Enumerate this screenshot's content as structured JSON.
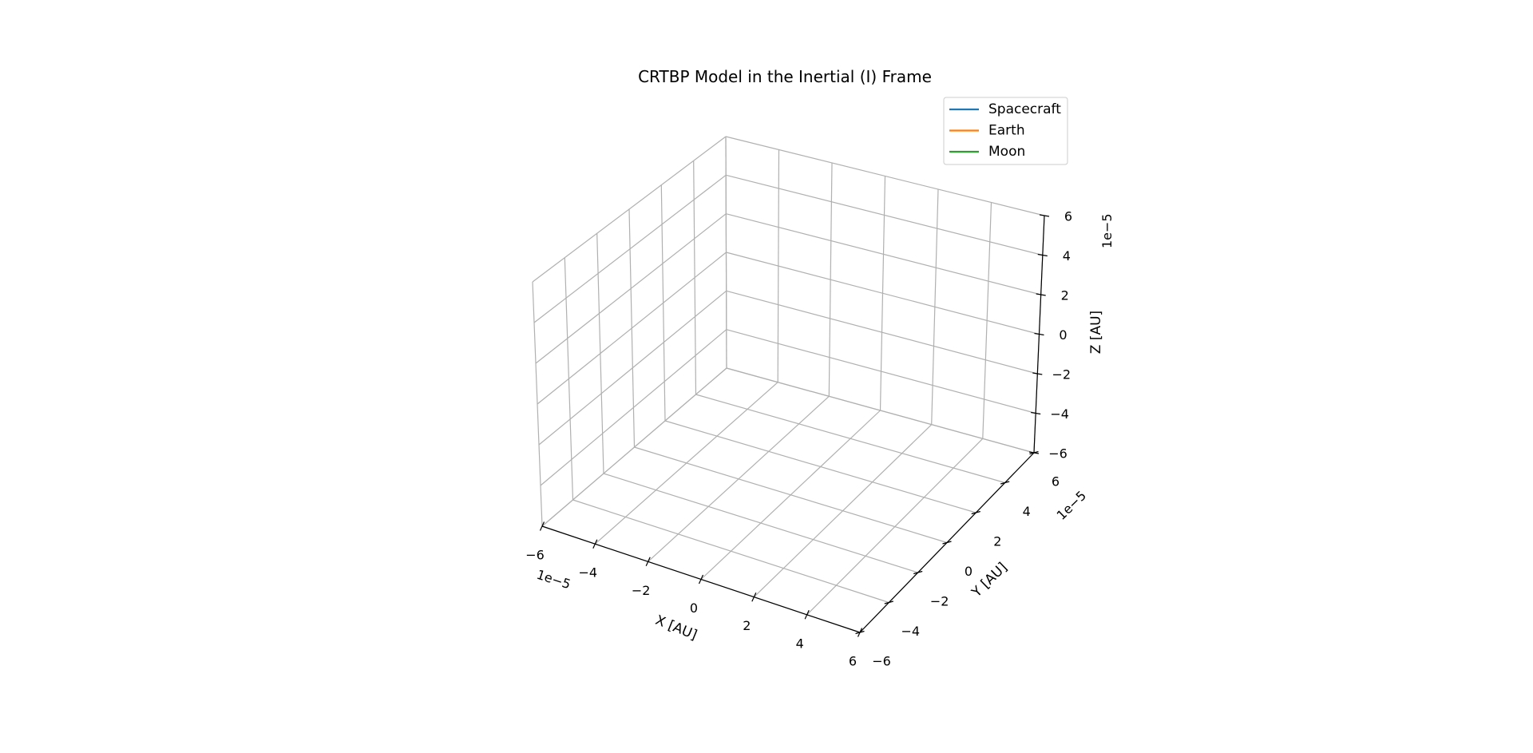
{
  "chart_data": {
    "type": "line",
    "projection": "3d",
    "title": "CRTBP Model in the Inertial (I) Frame",
    "xlabel": "X [AU]",
    "ylabel": "Y [AU]",
    "zlabel": "Z [AU]",
    "xticks": [
      "−6",
      "−4",
      "−2",
      "0",
      "2",
      "4",
      "6"
    ],
    "yticks": [
      "−6",
      "−4",
      "−2",
      "0",
      "2",
      "4",
      "6"
    ],
    "zticks": [
      "−6",
      "−4",
      "−2",
      "0",
      "2",
      "4",
      "6"
    ],
    "xoffset": "1e−5",
    "yoffset": "1e−5",
    "zoffset": "1e−5",
    "xlim": [
      -6e-05,
      6e-05
    ],
    "ylim": [
      -6e-05,
      6e-05
    ],
    "zlim": [
      -6e-05,
      6e-05
    ],
    "grid": true,
    "legend_position": "top-right",
    "series": [
      {
        "name": "Spacecraft",
        "color": "#1f77b4",
        "x": [],
        "y": [],
        "z": []
      },
      {
        "name": "Earth",
        "color": "#ff7f0e",
        "x": [],
        "y": [],
        "z": []
      },
      {
        "name": "Moon",
        "color": "#2ca02c",
        "x": [],
        "y": [],
        "z": []
      }
    ]
  }
}
